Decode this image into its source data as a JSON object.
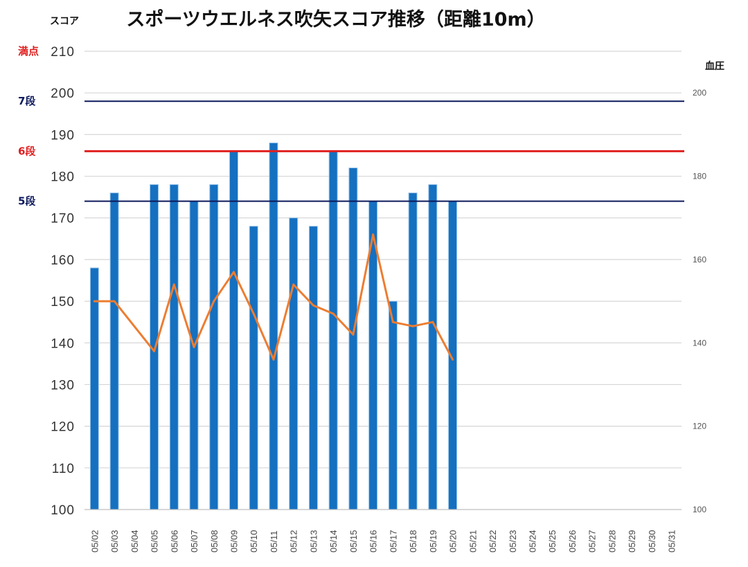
{
  "chart_data": {
    "type": "bar",
    "title": "スポーツウエルネス吹矢スコア推移（距離10m）",
    "ylabel": "スコア",
    "y2label": "血圧",
    "ylim": [
      100,
      210
    ],
    "y2lim": [
      100,
      210
    ],
    "yticks": [
      100,
      110,
      120,
      130,
      140,
      150,
      160,
      170,
      180,
      190,
      200,
      210
    ],
    "y2ticks": [
      100,
      120,
      140,
      160,
      180,
      200
    ],
    "grid": true,
    "categories": [
      "05/02",
      "05/03",
      "05/04",
      "05/05",
      "05/06",
      "05/07",
      "05/08",
      "05/09",
      "05/10",
      "05/11",
      "05/12",
      "05/13",
      "05/14",
      "05/15",
      "05/16",
      "05/17",
      "05/18",
      "05/19",
      "05/20",
      "05/21",
      "05/22",
      "05/23",
      "05/24",
      "05/25",
      "05/26",
      "05/27",
      "05/28",
      "05/29",
      "05/30",
      "05/31"
    ],
    "series": [
      {
        "type": "bar",
        "axis": "left",
        "color": "#1570c0",
        "values": [
          158,
          176,
          null,
          178,
          178,
          174,
          178,
          186,
          168,
          188,
          170,
          168,
          186,
          182,
          174,
          150,
          176,
          178,
          174,
          null,
          null,
          null,
          null,
          null,
          null,
          null,
          null,
          null,
          null,
          null
        ]
      },
      {
        "type": "line",
        "axis": "right",
        "color": "#ed7d31",
        "values": [
          150,
          150,
          null,
          138,
          154,
          139,
          150,
          157,
          147,
          136,
          154,
          149,
          147,
          142,
          166,
          145,
          144,
          145,
          136,
          null,
          null,
          null,
          null,
          null,
          null,
          null,
          null,
          null,
          null,
          null
        ]
      }
    ],
    "reference_lines": [
      {
        "label": "満点",
        "value": 210,
        "color": "#e02020"
      },
      {
        "label": "7段",
        "value": 198,
        "color": "#0d1a5c"
      },
      {
        "label": "6段",
        "value": 186,
        "color": "#e02020"
      },
      {
        "label": "5段",
        "value": 174,
        "color": "#0d1a5c"
      }
    ]
  }
}
